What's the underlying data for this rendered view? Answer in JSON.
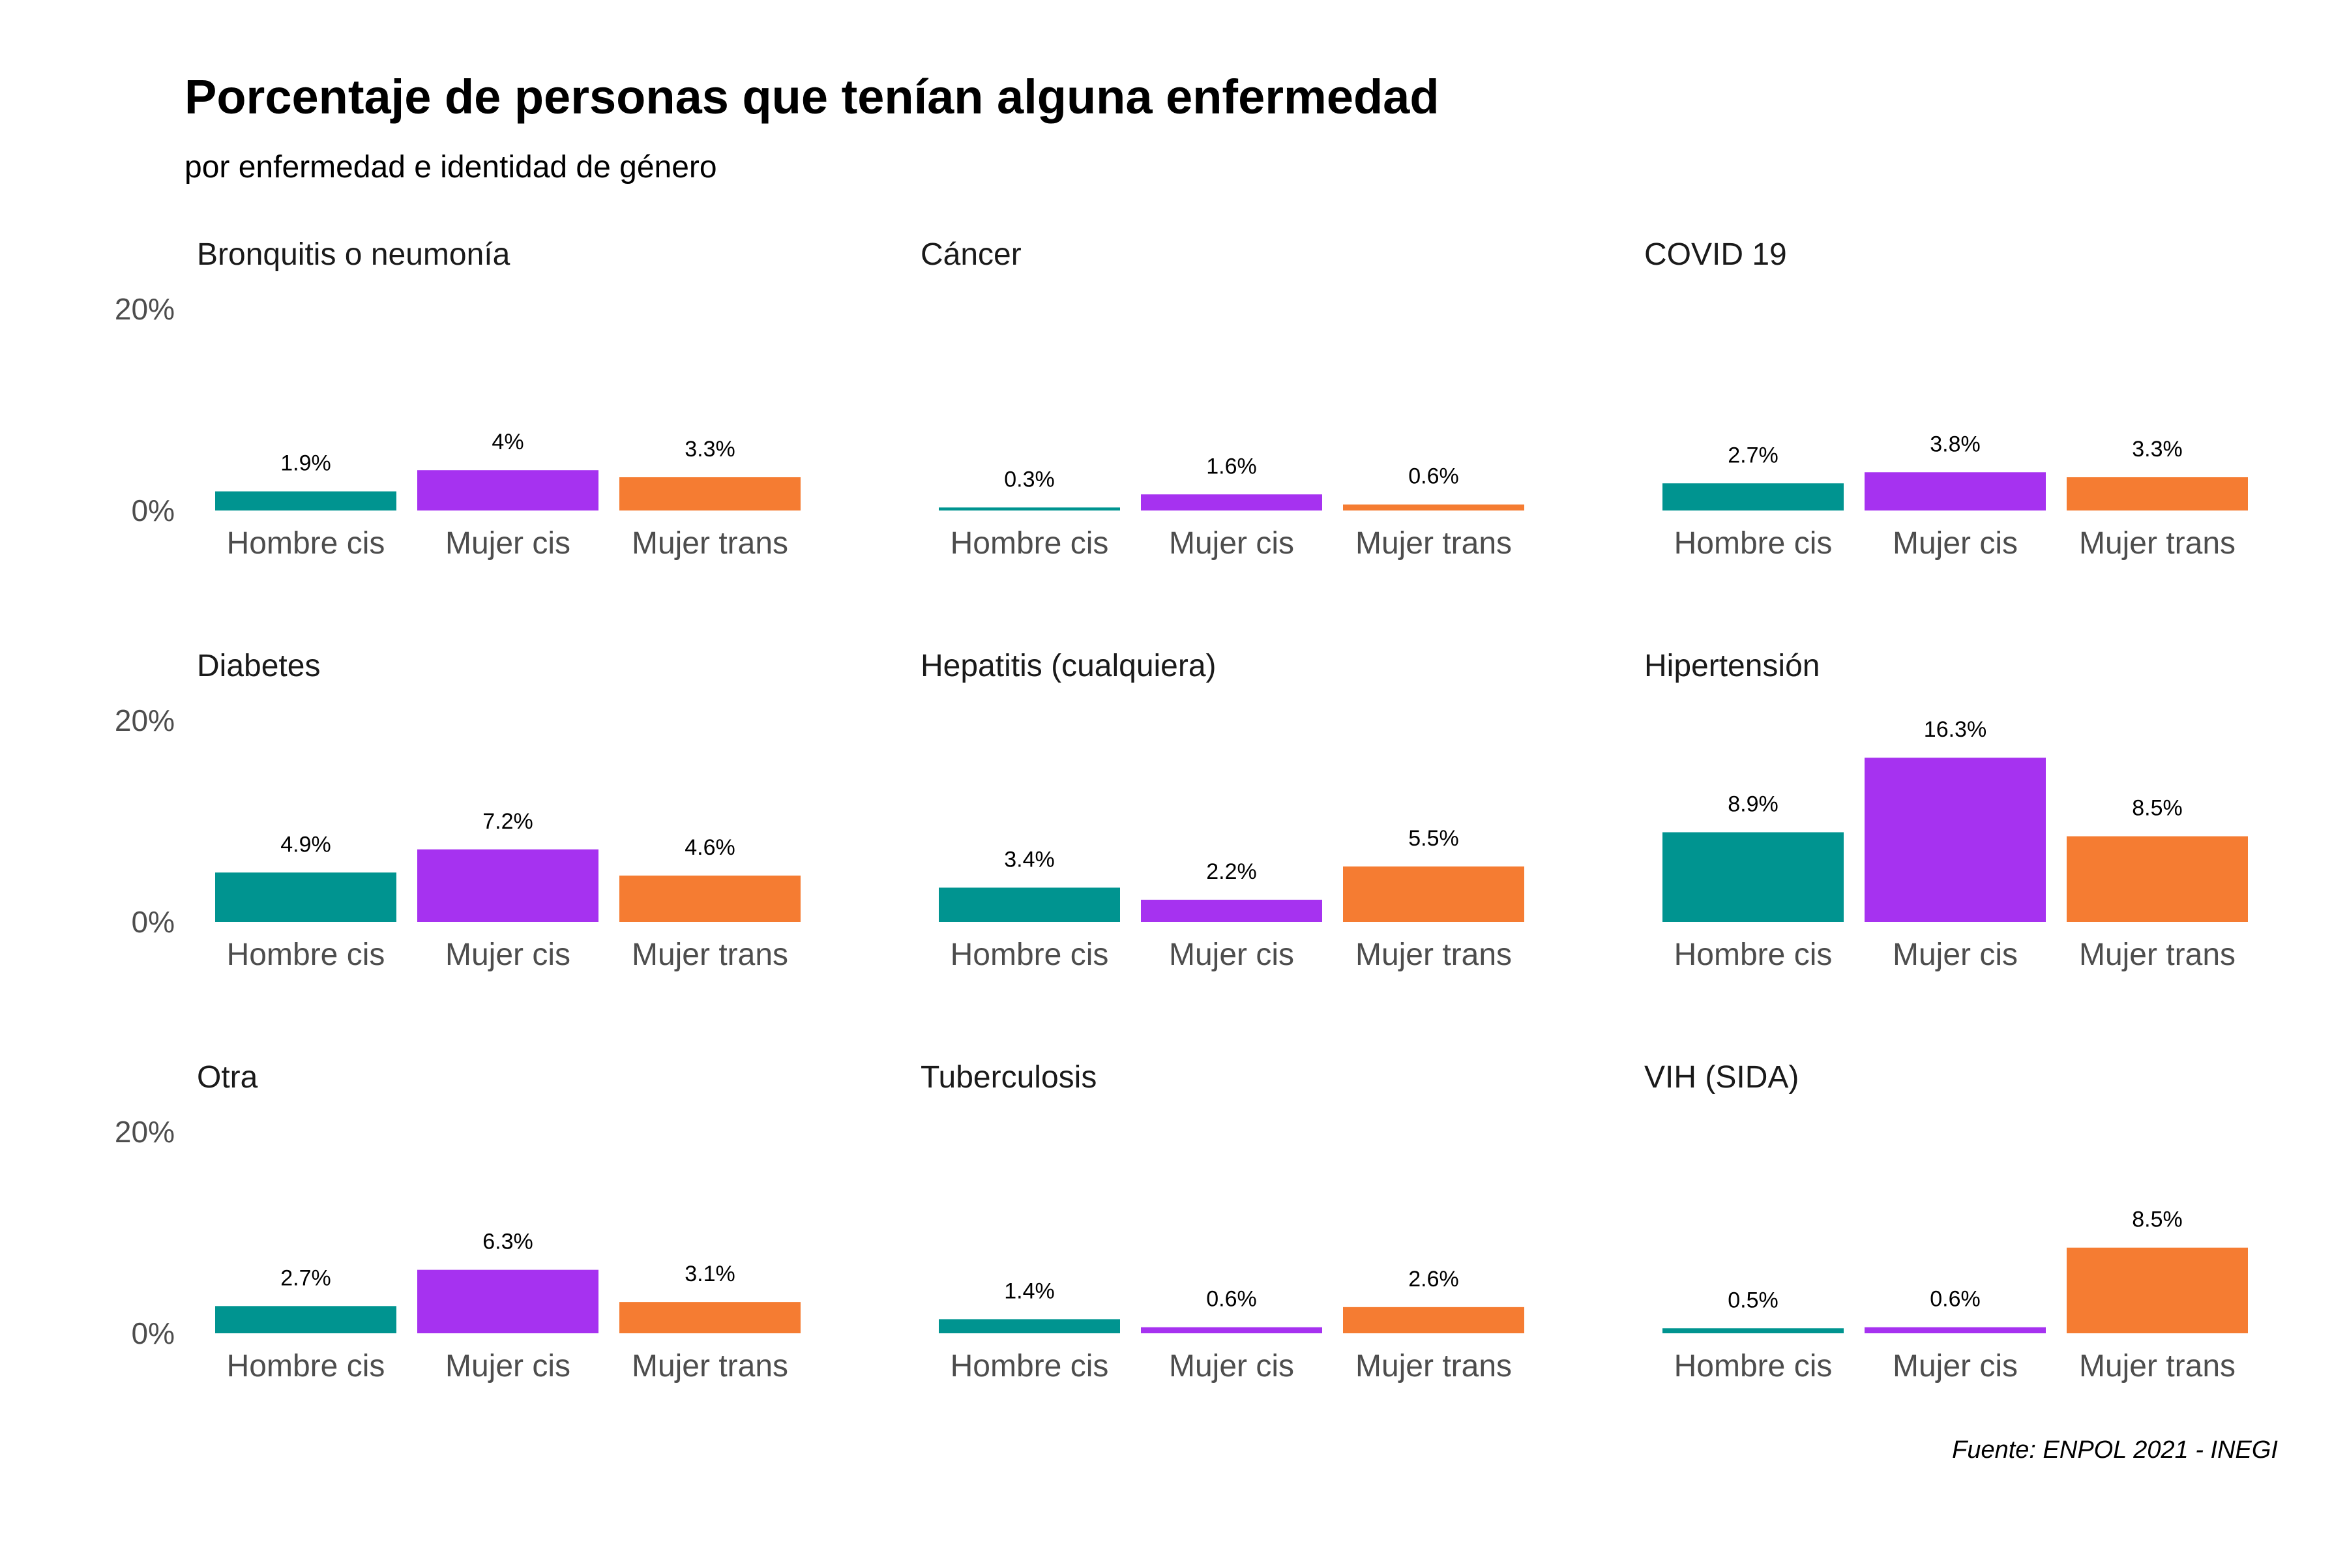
{
  "chart_data": {
    "type": "bar",
    "title": "Porcentaje de personas que tenían alguna enfermedad",
    "subtitle": "por enfermedad e identidad de género",
    "caption": "Fuente: ENPOL 2021 - INEGI",
    "categories": [
      "Hombre cis",
      "Mujer cis",
      "Mujer trans"
    ],
    "colors": [
      "#009490",
      "#A632F0",
      "#F57C32"
    ],
    "ylim": [
      0,
      20
    ],
    "yticks": [
      "0%",
      "20%"
    ],
    "grid": false,
    "legend": "none",
    "facets": [
      {
        "name": "Bronquitis o neumonía",
        "values": [
          1.9,
          4.0,
          3.3
        ],
        "labels": [
          "1.9%",
          "4%",
          "3.3%"
        ]
      },
      {
        "name": "Cáncer",
        "values": [
          0.3,
          1.6,
          0.6
        ],
        "labels": [
          "0.3%",
          "1.6%",
          "0.6%"
        ]
      },
      {
        "name": "COVID 19",
        "values": [
          2.7,
          3.8,
          3.3
        ],
        "labels": [
          "2.7%",
          "3.8%",
          "3.3%"
        ]
      },
      {
        "name": "Diabetes",
        "values": [
          4.9,
          7.2,
          4.6
        ],
        "labels": [
          "4.9%",
          "7.2%",
          "4.6%"
        ]
      },
      {
        "name": "Hepatitis (cualquiera)",
        "values": [
          3.4,
          2.2,
          5.5
        ],
        "labels": [
          "3.4%",
          "2.2%",
          "5.5%"
        ]
      },
      {
        "name": "Hipertensión",
        "values": [
          8.9,
          16.3,
          8.5
        ],
        "labels": [
          "8.9%",
          "16.3%",
          "8.5%"
        ]
      },
      {
        "name": "Otra",
        "values": [
          2.7,
          6.3,
          3.1
        ],
        "labels": [
          "2.7%",
          "6.3%",
          "3.1%"
        ]
      },
      {
        "name": "Tuberculosis",
        "values": [
          1.4,
          0.6,
          2.6
        ],
        "labels": [
          "1.4%",
          "0.6%",
          "2.6%"
        ]
      },
      {
        "name": "VIH (SIDA)",
        "values": [
          0.5,
          0.6,
          8.5
        ],
        "labels": [
          "0.5%",
          "0.6%",
          "8.5%"
        ]
      }
    ]
  }
}
